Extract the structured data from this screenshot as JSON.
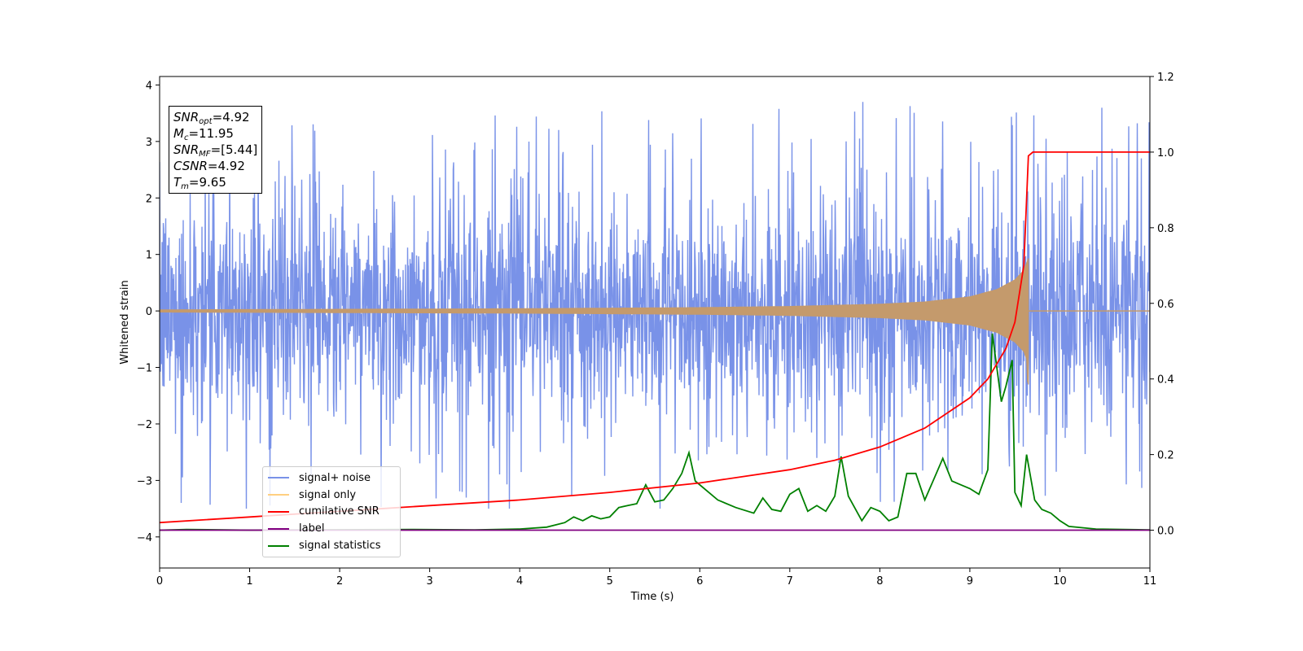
{
  "chart_data": {
    "type": "line",
    "xlabel": "Time (s)",
    "ylabel": "Whitened strain",
    "xlim": [
      0,
      11
    ],
    "ylim": [
      -4.55,
      4.15
    ],
    "y2lim": [
      -0.1,
      1.2
    ],
    "x_ticks": [
      "0",
      "1",
      "2",
      "3",
      "4",
      "5",
      "6",
      "7",
      "8",
      "9",
      "10",
      "11"
    ],
    "y_ticks": [
      "−4",
      "−3",
      "−2",
      "−1",
      "0",
      "1",
      "2",
      "3",
      "4"
    ],
    "y2_ticks": [
      "0.0",
      "0.2",
      "0.4",
      "0.6",
      "0.8",
      "1.0",
      "1.2"
    ],
    "grid": false,
    "legend_position": "lower-left",
    "colors": {
      "noise": "#7992e8",
      "signal": "#c49a6c",
      "signal_legend": "#ffcf80",
      "csnr": "#ff0000",
      "label": "#800080",
      "stats": "#008000"
    },
    "legend": [
      {
        "label": "signal+ noise",
        "color": "#7992e8"
      },
      {
        "label": "signal only",
        "color": "#ffcf80"
      },
      {
        "label": "cumilative SNR",
        "color": "#ff0000"
      },
      {
        "label": "label",
        "color": "#800080"
      },
      {
        "label": "signal statistics",
        "color": "#008000"
      }
    ],
    "series": [
      {
        "name": "signal+ noise",
        "axis": "left",
        "description_envelope_min": -3.5,
        "envelope_max": 3.7,
        "typical_low": -2.0,
        "typical_high": 2.0,
        "x_range": [
          0,
          11
        ]
      },
      {
        "name": "signal only",
        "axis": "left",
        "t_merger": 9.65,
        "amplitude_points": [
          [
            0,
            0.02
          ],
          [
            2,
            0.03
          ],
          [
            4,
            0.04
          ],
          [
            6,
            0.06
          ],
          [
            7,
            0.08
          ],
          [
            8,
            0.12
          ],
          [
            8.5,
            0.16
          ],
          [
            9,
            0.25
          ],
          [
            9.3,
            0.38
          ],
          [
            9.5,
            0.55
          ],
          [
            9.6,
            0.72
          ],
          [
            9.65,
            0.93
          ]
        ]
      },
      {
        "name": "cumilative SNR",
        "axis": "right",
        "points": [
          [
            0,
            0.02
          ],
          [
            1,
            0.035
          ],
          [
            2,
            0.05
          ],
          [
            3,
            0.065
          ],
          [
            4,
            0.08
          ],
          [
            5,
            0.1
          ],
          [
            6,
            0.125
          ],
          [
            7,
            0.16
          ],
          [
            7.5,
            0.185
          ],
          [
            8,
            0.22
          ],
          [
            8.5,
            0.27
          ],
          [
            9,
            0.35
          ],
          [
            9.2,
            0.4
          ],
          [
            9.4,
            0.48
          ],
          [
            9.5,
            0.55
          ],
          [
            9.6,
            0.7
          ],
          [
            9.65,
            0.99
          ],
          [
            9.7,
            1.0
          ],
          [
            11,
            1.0
          ]
        ]
      },
      {
        "name": "label",
        "axis": "right",
        "points": [
          [
            0,
            0.0
          ],
          [
            11,
            0.0
          ]
        ]
      },
      {
        "name": "signal statistics",
        "axis": "right",
        "points": [
          [
            0,
            0.0
          ],
          [
            0.3,
            0.002
          ],
          [
            1,
            0.0
          ],
          [
            2.8,
            0.002
          ],
          [
            3.5,
            0.001
          ],
          [
            4,
            0.003
          ],
          [
            4.3,
            0.008
          ],
          [
            4.5,
            0.02
          ],
          [
            4.6,
            0.035
          ],
          [
            4.7,
            0.025
          ],
          [
            4.8,
            0.038
          ],
          [
            4.9,
            0.03
          ],
          [
            5.0,
            0.035
          ],
          [
            5.1,
            0.06
          ],
          [
            5.2,
            0.065
          ],
          [
            5.3,
            0.07
          ],
          [
            5.4,
            0.12
          ],
          [
            5.5,
            0.075
          ],
          [
            5.6,
            0.08
          ],
          [
            5.7,
            0.11
          ],
          [
            5.8,
            0.15
          ],
          [
            5.88,
            0.205
          ],
          [
            5.95,
            0.13
          ],
          [
            6.1,
            0.1
          ],
          [
            6.2,
            0.08
          ],
          [
            6.4,
            0.06
          ],
          [
            6.6,
            0.045
          ],
          [
            6.7,
            0.085
          ],
          [
            6.8,
            0.055
          ],
          [
            6.9,
            0.05
          ],
          [
            7.0,
            0.095
          ],
          [
            7.1,
            0.11
          ],
          [
            7.2,
            0.05
          ],
          [
            7.3,
            0.065
          ],
          [
            7.4,
            0.05
          ],
          [
            7.5,
            0.09
          ],
          [
            7.57,
            0.195
          ],
          [
            7.65,
            0.09
          ],
          [
            7.8,
            0.025
          ],
          [
            7.9,
            0.06
          ],
          [
            8.0,
            0.05
          ],
          [
            8.1,
            0.025
          ],
          [
            8.2,
            0.035
          ],
          [
            8.3,
            0.15
          ],
          [
            8.4,
            0.15
          ],
          [
            8.5,
            0.08
          ],
          [
            8.6,
            0.135
          ],
          [
            8.7,
            0.19
          ],
          [
            8.8,
            0.13
          ],
          [
            8.9,
            0.12
          ],
          [
            9.0,
            0.11
          ],
          [
            9.1,
            0.095
          ],
          [
            9.2,
            0.16
          ],
          [
            9.25,
            0.52
          ],
          [
            9.35,
            0.34
          ],
          [
            9.4,
            0.38
          ],
          [
            9.47,
            0.45
          ],
          [
            9.5,
            0.1
          ],
          [
            9.57,
            0.065
          ],
          [
            9.63,
            0.2
          ],
          [
            9.72,
            0.08
          ],
          [
            9.8,
            0.055
          ],
          [
            9.9,
            0.045
          ],
          [
            10.0,
            0.025
          ],
          [
            10.1,
            0.01
          ],
          [
            10.4,
            0.003
          ],
          [
            11,
            0.001
          ]
        ]
      }
    ]
  },
  "info_box": {
    "snr_opt_symbol": "SNR",
    "snr_opt_sub": "opt",
    "snr_opt_value": "=4.92",
    "mc_symbol": "M",
    "mc_sub": "c",
    "mc_value": "=11.95",
    "snr_mf_symbol": "SNR",
    "snr_mf_sub": "MF",
    "snr_mf_value": "=[5.44]",
    "csnr_symbol": "CSNR",
    "csnr_value": "=4.92",
    "tm_symbol": "T",
    "tm_sub": "m",
    "tm_value": "=9.65"
  }
}
